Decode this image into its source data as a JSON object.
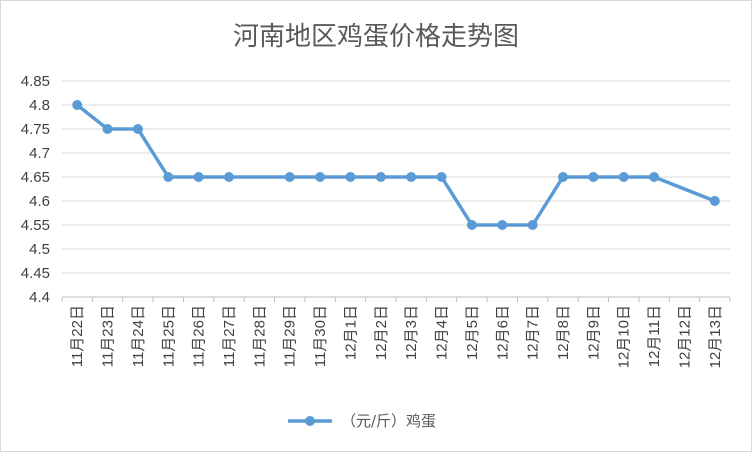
{
  "chart_data": {
    "type": "line",
    "title": "河南地区鸡蛋价格走势图",
    "categories": [
      "11月22日",
      "11月23日",
      "11月24日",
      "11月25日",
      "11月26日",
      "11月27日",
      "11月28日",
      "11月29日",
      "11月30日",
      "12月1日",
      "12月2日",
      "12月3日",
      "12月4日",
      "12月5日",
      "12月6日",
      "12月7日",
      "12月8日",
      "12月9日",
      "12月10日",
      "12月11日",
      "12月12日",
      "12月13日"
    ],
    "series": [
      {
        "name": "（元/斤）鸡蛋",
        "values": [
          4.8,
          4.75,
          4.75,
          4.65,
          4.65,
          4.65,
          null,
          4.65,
          4.65,
          4.65,
          4.65,
          4.65,
          4.65,
          4.55,
          4.55,
          4.55,
          4.65,
          4.65,
          4.65,
          4.65,
          null,
          4.6
        ],
        "color": "#5b9bd5"
      }
    ],
    "ylim": [
      4.4,
      4.85
    ],
    "yticks": [
      "4.4",
      "4.45",
      "4.5",
      "4.55",
      "4.6",
      "4.65",
      "4.7",
      "4.75",
      "4.8",
      "4.85"
    ],
    "grid": true,
    "legend": "bottom",
    "gridColor": "#d9d9d9",
    "axisColor": "#bfbfbf"
  }
}
